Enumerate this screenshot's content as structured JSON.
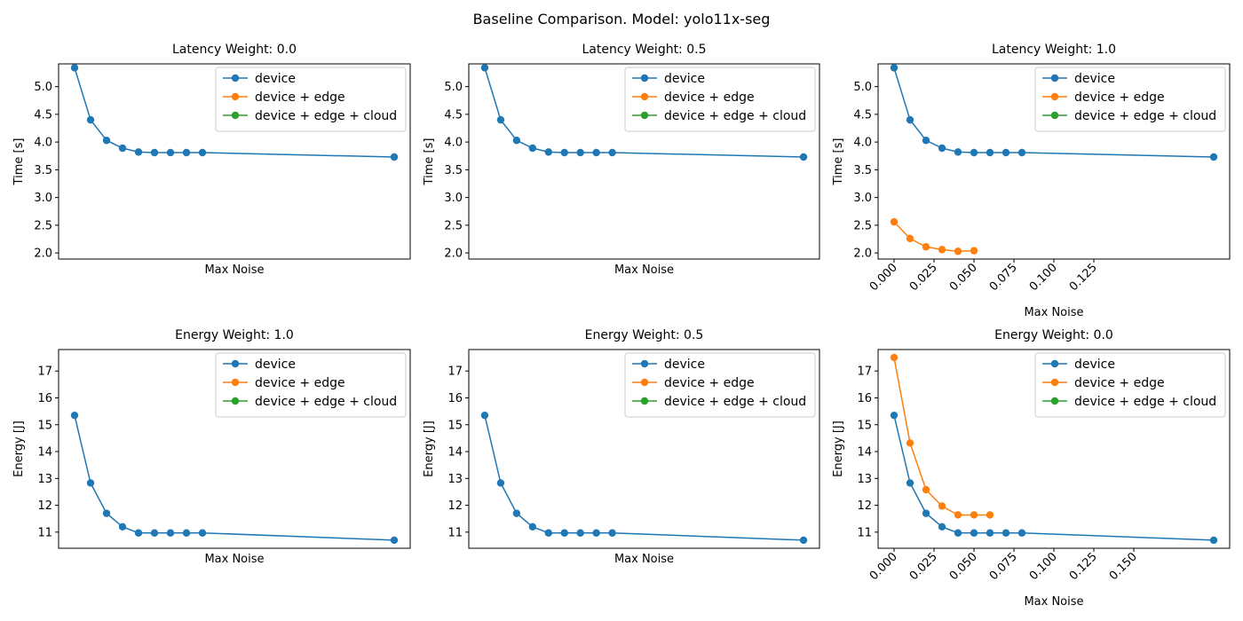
{
  "figure": {
    "title": "Baseline Comparison. Model: yolo11x-seg"
  },
  "colors": {
    "device": "#1f77b4",
    "device + edge": "#ff7f0e",
    "device + edge + cloud": "#2ca02c"
  },
  "chart_data": [
    {
      "type": "line",
      "title": "Latency Weight: 0.0",
      "xlabel": "Max Noise",
      "ylabel": "Time [s]",
      "show_xticks": false,
      "xlim": [
        -0.01,
        0.21
      ],
      "ylim": [
        1.89,
        5.41
      ],
      "yticks": [
        2.0,
        2.5,
        3.0,
        3.5,
        4.0,
        4.5,
        5.0
      ],
      "ytick_labels": [
        "2.0",
        "2.5",
        "3.0",
        "3.5",
        "4.0",
        "4.5",
        "5.0"
      ],
      "xticks": [],
      "xtick_labels": [],
      "legend": [
        "device",
        "device + edge",
        "device + edge + cloud"
      ],
      "legend_loc": "upper right",
      "series": [
        {
          "name": "device",
          "x": [
            0,
            0.01,
            0.02,
            0.03,
            0.04,
            0.05,
            0.06,
            0.07,
            0.08,
            0.2
          ],
          "y": [
            5.34,
            4.4,
            4.03,
            3.89,
            3.82,
            3.81,
            3.81,
            3.81,
            3.81,
            3.73
          ]
        }
      ]
    },
    {
      "type": "line",
      "title": "Latency Weight: 0.5",
      "xlabel": "Max Noise",
      "ylabel": "Time [s]",
      "show_xticks": false,
      "xlim": [
        -0.01,
        0.21
      ],
      "ylim": [
        1.89,
        5.41
      ],
      "yticks": [
        2.0,
        2.5,
        3.0,
        3.5,
        4.0,
        4.5,
        5.0
      ],
      "ytick_labels": [
        "2.0",
        "2.5",
        "3.0",
        "3.5",
        "4.0",
        "4.5",
        "5.0"
      ],
      "xticks": [],
      "xtick_labels": [],
      "legend": [
        "device",
        "device + edge",
        "device + edge + cloud"
      ],
      "legend_loc": "upper right",
      "series": [
        {
          "name": "device",
          "x": [
            0,
            0.01,
            0.02,
            0.03,
            0.04,
            0.05,
            0.06,
            0.07,
            0.08,
            0.2
          ],
          "y": [
            5.34,
            4.4,
            4.03,
            3.89,
            3.82,
            3.81,
            3.81,
            3.81,
            3.81,
            3.73
          ]
        }
      ]
    },
    {
      "type": "line",
      "title": "Latency Weight: 1.0",
      "xlabel": "Max Noise",
      "ylabel": "Time [s]",
      "show_xticks": true,
      "xlim": [
        -0.01,
        0.21
      ],
      "ylim": [
        1.89,
        5.41
      ],
      "yticks": [
        2.0,
        2.5,
        3.0,
        3.5,
        4.0,
        4.5,
        5.0
      ],
      "ytick_labels": [
        "2.0",
        "2.5",
        "3.0",
        "3.5",
        "4.0",
        "4.5",
        "5.0"
      ],
      "xticks": [
        0,
        0.025,
        0.05,
        0.075,
        0.1,
        0.125
      ],
      "xtick_labels": [
        "0.000",
        "0.025",
        "0.050",
        "0.075",
        "0.100",
        "0.125"
      ],
      "legend": [
        "device",
        "device + edge",
        "device + edge + cloud"
      ],
      "legend_loc": "upper right",
      "series": [
        {
          "name": "device",
          "x": [
            0,
            0.01,
            0.02,
            0.03,
            0.04,
            0.05,
            0.06,
            0.07,
            0.08,
            0.2
          ],
          "y": [
            5.34,
            4.4,
            4.03,
            3.89,
            3.82,
            3.81,
            3.81,
            3.81,
            3.81,
            3.73
          ]
        },
        {
          "name": "device + edge",
          "x": [
            0,
            0.01,
            0.02,
            0.03,
            0.04,
            0.05
          ],
          "y": [
            2.56,
            2.26,
            2.11,
            2.06,
            2.03,
            2.04
          ]
        }
      ]
    },
    {
      "type": "line",
      "title": "Energy Weight: 1.0",
      "xlabel": "Max Noise",
      "ylabel": "Energy [J]",
      "show_xticks": false,
      "xlim": [
        -0.01,
        0.21
      ],
      "ylim": [
        10.4,
        17.8
      ],
      "yticks": [
        11,
        12,
        13,
        14,
        15,
        16,
        17
      ],
      "ytick_labels": [
        "11",
        "12",
        "13",
        "14",
        "15",
        "16",
        "17"
      ],
      "xticks": [],
      "xtick_labels": [],
      "legend": [
        "device",
        "device + edge",
        "device + edge + cloud"
      ],
      "legend_loc": "upper right",
      "series": [
        {
          "name": "device",
          "x": [
            0,
            0.01,
            0.02,
            0.03,
            0.04,
            0.05,
            0.06,
            0.07,
            0.08,
            0.2
          ],
          "y": [
            15.35,
            12.83,
            11.7,
            11.2,
            10.97,
            10.97,
            10.97,
            10.97,
            10.97,
            10.7
          ]
        }
      ]
    },
    {
      "type": "line",
      "title": "Energy Weight: 0.5",
      "xlabel": "Max Noise",
      "ylabel": "Energy [J]",
      "show_xticks": false,
      "xlim": [
        -0.01,
        0.21
      ],
      "ylim": [
        10.4,
        17.8
      ],
      "yticks": [
        11,
        12,
        13,
        14,
        15,
        16,
        17
      ],
      "ytick_labels": [
        "11",
        "12",
        "13",
        "14",
        "15",
        "16",
        "17"
      ],
      "xticks": [],
      "xtick_labels": [],
      "legend": [
        "device",
        "device + edge",
        "device + edge + cloud"
      ],
      "legend_loc": "upper right",
      "series": [
        {
          "name": "device",
          "x": [
            0,
            0.01,
            0.02,
            0.03,
            0.04,
            0.05,
            0.06,
            0.07,
            0.08,
            0.2
          ],
          "y": [
            15.35,
            12.83,
            11.7,
            11.2,
            10.97,
            10.97,
            10.97,
            10.97,
            10.97,
            10.7
          ]
        }
      ]
    },
    {
      "type": "line",
      "title": "Energy Weight: 0.0",
      "xlabel": "Max Noise",
      "ylabel": "Energy [J]",
      "show_xticks": true,
      "xlim": [
        -0.01,
        0.21
      ],
      "ylim": [
        10.4,
        17.8
      ],
      "yticks": [
        11,
        12,
        13,
        14,
        15,
        16,
        17
      ],
      "ytick_labels": [
        "11",
        "12",
        "13",
        "14",
        "15",
        "16",
        "17"
      ],
      "xticks": [
        0,
        0.025,
        0.05,
        0.075,
        0.1,
        0.125,
        0.15
      ],
      "xtick_labels": [
        "0.000",
        "0.025",
        "0.050",
        "0.075",
        "0.100",
        "0.125",
        "0.150"
      ],
      "legend": [
        "device",
        "device + edge",
        "device + edge + cloud"
      ],
      "legend_loc": "upper right",
      "series": [
        {
          "name": "device",
          "x": [
            0,
            0.01,
            0.02,
            0.03,
            0.04,
            0.05,
            0.06,
            0.07,
            0.08,
            0.2
          ],
          "y": [
            15.35,
            12.83,
            11.7,
            11.2,
            10.97,
            10.97,
            10.97,
            10.97,
            10.97,
            10.7
          ]
        },
        {
          "name": "device + edge",
          "x": [
            0,
            0.01,
            0.02,
            0.03,
            0.04,
            0.05,
            0.06
          ],
          "y": [
            17.5,
            14.32,
            12.58,
            11.97,
            11.64,
            11.64,
            11.64
          ]
        }
      ]
    }
  ]
}
